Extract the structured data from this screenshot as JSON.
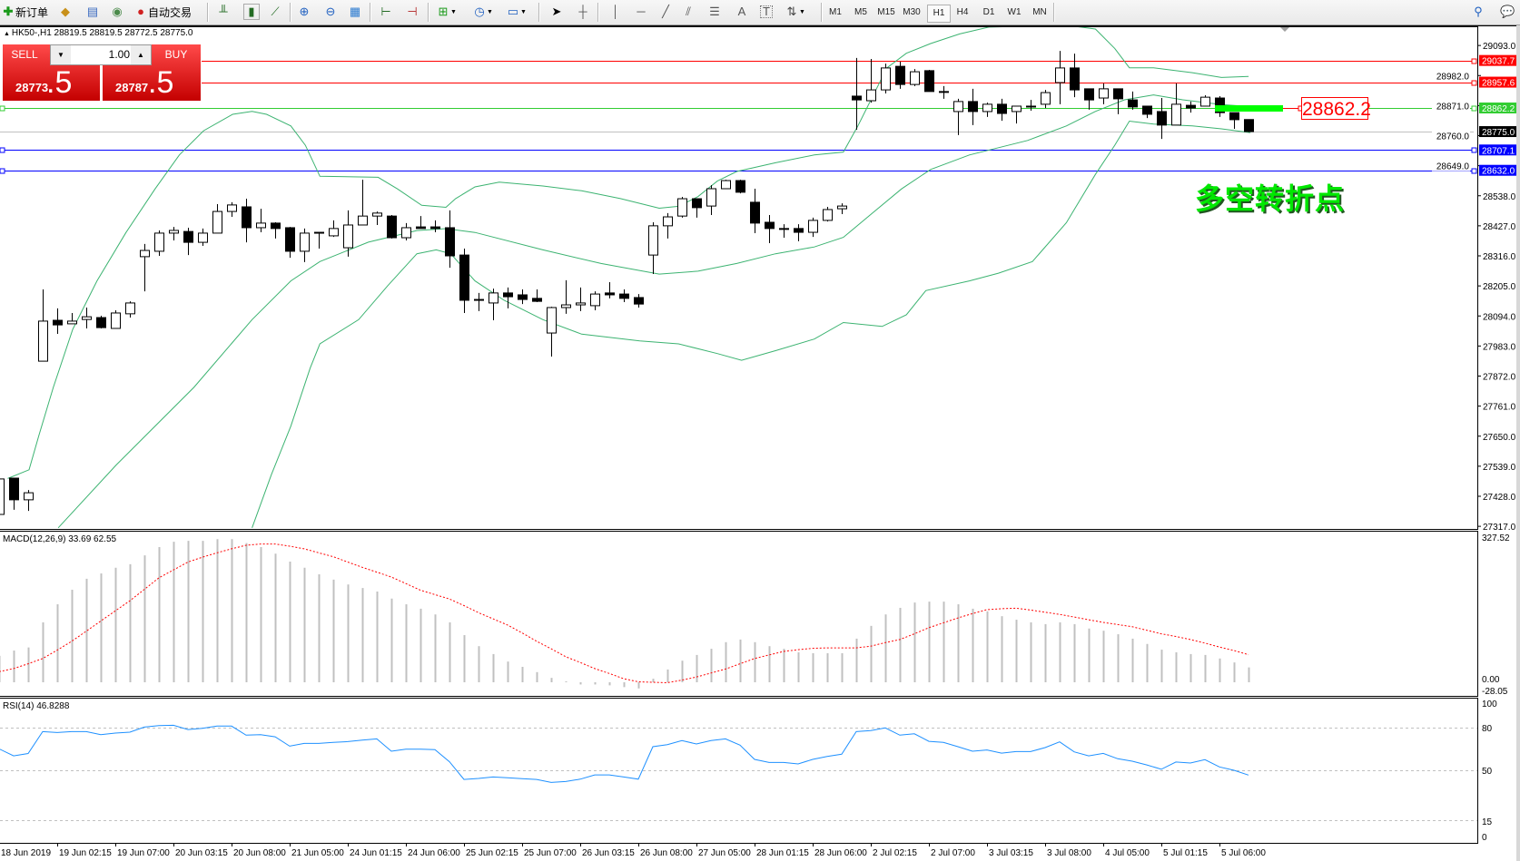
{
  "toolbar": {
    "new_order_label": "新订单",
    "auto_trading_label": "自动交易",
    "icons": [
      "new-order-icon",
      "market-watch-icon",
      "navigator-icon",
      "signals-icon",
      "auto-trading-icon",
      "bar-chart-icon",
      "candlestick-icon",
      "line-chart-icon",
      "zoom-in-icon",
      "zoom-out-icon",
      "tile-windows-icon",
      "chart-shift-icon",
      "autoscroll-icon",
      "indicators-icon",
      "periods-icon",
      "templates-icon",
      "cursor-icon",
      "crosshair-icon",
      "vertical-line-icon",
      "horizontal-line-icon",
      "trendline-icon",
      "equidistant-channel-icon",
      "fibonacci-icon",
      "text-icon",
      "text-label-icon",
      "arrows-icon",
      "search-icon",
      "chat-icon"
    ],
    "timeframes": [
      "M1",
      "M5",
      "M15",
      "M30",
      "H1",
      "H4",
      "D1",
      "W1",
      "MN"
    ],
    "selected_timeframe": "H1"
  },
  "header": {
    "text": "HK50-,H1  28819.5 28819.5 28772.5 28775.0"
  },
  "trade": {
    "sell_label": "SELL",
    "buy_label": "BUY",
    "lot": "1.00",
    "sell_big": "28773",
    "sell_small": ".5",
    "buy_big": "28787",
    "buy_small": ".5"
  },
  "annotation": {
    "text": "多空转折点",
    "price_box": "28862.2",
    "color": "#00ff00"
  },
  "colors": {
    "bands": "#3cb371",
    "hist": "#c0c0c0",
    "signal": "#ff0000",
    "rsi": "#1e90ff",
    "red_line": "#ff0000",
    "blue_line": "#0000ff",
    "green_line": "#32cd32",
    "bid_line": "#c0c0c0"
  },
  "price_axis": {
    "ticks": [
      "29093.0",
      "28982.0",
      "28871.0",
      "28760.0",
      "28649.0",
      "28538.0",
      "28427.0",
      "28316.0",
      "28205.0",
      "28094.0",
      "27983.0",
      "27872.0",
      "27761.0",
      "27650.0",
      "27539.0",
      "27428.0",
      "27317.0"
    ]
  },
  "levels": [
    {
      "price": "29037.7",
      "color": "#ff0000",
      "text": "#ffffff"
    },
    {
      "price": "28957.6",
      "color": "#ff0000",
      "text": "#ffffff"
    },
    {
      "price": "28862.2",
      "color": "#32cd32",
      "text": "#ffffff"
    },
    {
      "price": "28775.0",
      "color": "#000000",
      "text": "#ffffff"
    },
    {
      "price": "28707.1",
      "color": "#0000ff",
      "text": "#ffffff"
    },
    {
      "price": "28632.0",
      "color": "#0000ff",
      "text": "#ffffff"
    }
  ],
  "macd": {
    "label": "MACD(12,26,9) 33.69 62.55",
    "axis": [
      "327.52",
      "0.00",
      "-28.05"
    ],
    "hist": [
      60,
      72,
      79,
      136,
      177,
      210,
      235,
      247,
      260,
      268,
      288,
      307,
      319,
      321,
      321,
      325,
      325,
      316,
      307,
      292,
      274,
      260,
      245,
      233,
      222,
      214,
      206,
      190,
      177,
      167,
      154,
      136,
      107,
      82,
      64,
      47,
      35,
      23,
      10,
      2,
      -5,
      -5,
      -7,
      -11,
      -14,
      8,
      29,
      49,
      62,
      76,
      91,
      97,
      91,
      82,
      76,
      68,
      66,
      66,
      66,
      99,
      128,
      154,
      169,
      181,
      183,
      183,
      177,
      167,
      161,
      150,
      142,
      136,
      132,
      136,
      132,
      122,
      117,
      109,
      99,
      87,
      74,
      68,
      64,
      62,
      54,
      45,
      33.69
    ],
    "signal": [
      24,
      31,
      42,
      54,
      73,
      93,
      116,
      139,
      162,
      185,
      211,
      237,
      255,
      273,
      284,
      294,
      303,
      311,
      314,
      314,
      309,
      303,
      294,
      285,
      273,
      261,
      250,
      239,
      224,
      209,
      199,
      189,
      174,
      158,
      144,
      130,
      112,
      93,
      76,
      58,
      45,
      31,
      20,
      8,
      1,
      0,
      -1,
      5,
      12,
      21,
      30,
      42,
      54,
      62,
      70,
      74,
      77,
      78,
      78,
      78,
      82,
      90,
      97,
      110,
      124,
      135,
      146,
      156,
      165,
      167,
      168,
      164,
      159,
      154,
      148,
      142,
      136,
      131,
      126,
      118,
      110,
      104,
      97,
      89,
      80,
      72,
      62.55
    ]
  },
  "rsi": {
    "label": "RSI(14) 46.8288",
    "axis": [
      "100",
      "80",
      "50",
      "15",
      "0"
    ],
    "values": [
      65.3,
      60.4,
      62,
      77.4,
      76.8,
      77.4,
      77.4,
      75.3,
      76.4,
      77,
      80.6,
      81.7,
      81.9,
      78.9,
      79.8,
      81.3,
      81.3,
      74.9,
      75.3,
      73.8,
      67.2,
      69.1,
      69.1,
      69.8,
      70.4,
      71.5,
      72.3,
      63.6,
      65.1,
      65.1,
      64.7,
      56.2,
      43.8,
      44.5,
      45.5,
      44.9,
      44.3,
      43.8,
      41.7,
      42.3,
      44,
      47,
      47,
      45.5,
      44,
      66.8,
      68.3,
      71.1,
      68.7,
      71.1,
      72.3,
      67.9,
      57.9,
      55.7,
      55.7,
      54.7,
      57.9,
      60,
      61.5,
      77.4,
      78.1,
      80,
      74.9,
      75.9,
      70.6,
      69.8,
      66.8,
      63.6,
      64.5,
      62.3,
      63.4,
      63.4,
      66.2,
      70.2,
      63.2,
      60.4,
      62.1,
      58.3,
      56.6,
      54,
      50.9,
      56,
      55.3,
      57.7,
      52.6,
      50.2,
      46.83
    ]
  },
  "time_axis": [
    "18 Jun 2019",
    "19 Jun 02:15",
    "19 Jun 07:00",
    "20 Jun 03:15",
    "20 Jun 08:00",
    "21 Jun 05:00",
    "24 Jun 01:15",
    "24 Jun 06:00",
    "25 Jun 02:15",
    "25 Jun 07:00",
    "26 Jun 03:15",
    "26 Jun 08:00",
    "27 Jun 05:00",
    "28 Jun 01:15",
    "28 Jun 06:00",
    "2 Jul 02:15",
    "2 Jul 07:00",
    "3 Jul 03:15",
    "3 Jul 08:00",
    "4 Jul 05:00",
    "5 Jul 01:15",
    "5 Jul 06:00"
  ],
  "candles_ohlc": [
    [
      27361,
      27498,
      27351,
      27492
    ],
    [
      27495,
      27495,
      27378,
      27415
    ],
    [
      27415,
      27451,
      27374,
      27441
    ],
    [
      27927,
      28192,
      27927,
      28075
    ],
    [
      28078,
      28122,
      28028,
      28061
    ],
    [
      28065,
      28105,
      28065,
      28075
    ],
    [
      28081,
      28125,
      28048,
      28091
    ],
    [
      28088,
      28095,
      28048,
      28051
    ],
    [
      28048,
      28115,
      28048,
      28105
    ],
    [
      28102,
      28148,
      28088,
      28142
    ],
    [
      28313,
      28360,
      28185,
      28336
    ],
    [
      28333,
      28410,
      28316,
      28400
    ],
    [
      28400,
      28423,
      28373,
      28410
    ],
    [
      28406,
      28420,
      28319,
      28366
    ],
    [
      28366,
      28417,
      28353,
      28400
    ],
    [
      28400,
      28507,
      28400,
      28480
    ],
    [
      28480,
      28514,
      28460,
      28504
    ],
    [
      28497,
      28527,
      28366,
      28420
    ],
    [
      28420,
      28490,
      28403,
      28437
    ],
    [
      28437,
      28440,
      28380,
      28417
    ],
    [
      28420,
      28423,
      28309,
      28333
    ],
    [
      28333,
      28417,
      28293,
      28400
    ],
    [
      28403,
      28403,
      28343,
      28403
    ],
    [
      28390,
      28447,
      28386,
      28417
    ],
    [
      28346,
      28484,
      28313,
      28430
    ],
    [
      28430,
      28597,
      28430,
      28463
    ],
    [
      28463,
      28480,
      28430,
      28474
    ],
    [
      28463,
      28467,
      28380,
      28383
    ],
    [
      28383,
      28437,
      28373,
      28420
    ],
    [
      28423,
      28463,
      28417,
      28417
    ],
    [
      28423,
      28447,
      28403,
      28417
    ],
    [
      28420,
      28484,
      28272,
      28316
    ],
    [
      28319,
      28343,
      28105,
      28152
    ],
    [
      28155,
      28179,
      28112,
      28155
    ],
    [
      28142,
      28195,
      28078,
      28179
    ],
    [
      28179,
      28199,
      28122,
      28165
    ],
    [
      28172,
      28192,
      28138,
      28155
    ],
    [
      28159,
      28192,
      28145,
      28148
    ],
    [
      28031,
      28128,
      27944,
      28125
    ],
    [
      28125,
      28226,
      28102,
      28135
    ],
    [
      28135,
      28199,
      28112,
      28142
    ],
    [
      28132,
      28185,
      28115,
      28175
    ],
    [
      28179,
      28219,
      28159,
      28172
    ],
    [
      28175,
      28192,
      28145,
      28159
    ],
    [
      28162,
      28175,
      28125,
      28138
    ],
    [
      28319,
      28440,
      28249,
      28427
    ],
    [
      28427,
      28474,
      28380,
      28460
    ],
    [
      28463,
      28534,
      28457,
      28527
    ],
    [
      28527,
      28527,
      28457,
      28494
    ],
    [
      28500,
      28577,
      28467,
      28564
    ],
    [
      28564,
      28597,
      28564,
      28594
    ],
    [
      28594,
      28597,
      28547,
      28551
    ],
    [
      28514,
      28564,
      28400,
      28437
    ],
    [
      28440,
      28467,
      28363,
      28417
    ],
    [
      28417,
      28433,
      28383,
      28417
    ],
    [
      28417,
      28433,
      28370,
      28403
    ],
    [
      28403,
      28457,
      28386,
      28447
    ],
    [
      28447,
      28497,
      28443,
      28487
    ],
    [
      28490,
      28510,
      28470,
      28500
    ],
    [
      28906,
      29047,
      28782,
      28892
    ],
    [
      28889,
      29043,
      28882,
      28929
    ],
    [
      28929,
      29026,
      28916,
      29010
    ],
    [
      29016,
      29033,
      28933,
      28949
    ],
    [
      28949,
      29006,
      28943,
      28996
    ],
    [
      29000,
      29003,
      28923,
      28923
    ],
    [
      28923,
      28943,
      28896,
      28923
    ],
    [
      28849,
      28896,
      28762,
      28886
    ],
    [
      28886,
      28933,
      28799,
      28849
    ],
    [
      28849,
      28882,
      28829,
      28876
    ],
    [
      28876,
      28896,
      28815,
      28842
    ],
    [
      28849,
      28869,
      28805,
      28869
    ],
    [
      28869,
      28892,
      28852,
      28869
    ],
    [
      28876,
      28929,
      28862,
      28919
    ],
    [
      28956,
      29073,
      28876,
      29010
    ],
    [
      29010,
      29063,
      28902,
      28929
    ],
    [
      28933,
      28933,
      28856,
      28892
    ],
    [
      28899,
      28953,
      28876,
      28933
    ],
    [
      28933,
      28933,
      28839,
      28896
    ],
    [
      28892,
      28923,
      28856,
      28866
    ],
    [
      28869,
      28869,
      28825,
      28839
    ],
    [
      28849,
      28899,
      28748,
      28799
    ],
    [
      28799,
      28953,
      28799,
      28876
    ],
    [
      28872,
      28886,
      28845,
      28862
    ],
    [
      28869,
      28909,
      28869,
      28902
    ],
    [
      28899,
      28906,
      28829,
      28845
    ],
    [
      28845,
      28845,
      28785,
      28819
    ],
    [
      28819.5,
      28819.5,
      28772.5,
      28775.0
    ]
  ]
}
